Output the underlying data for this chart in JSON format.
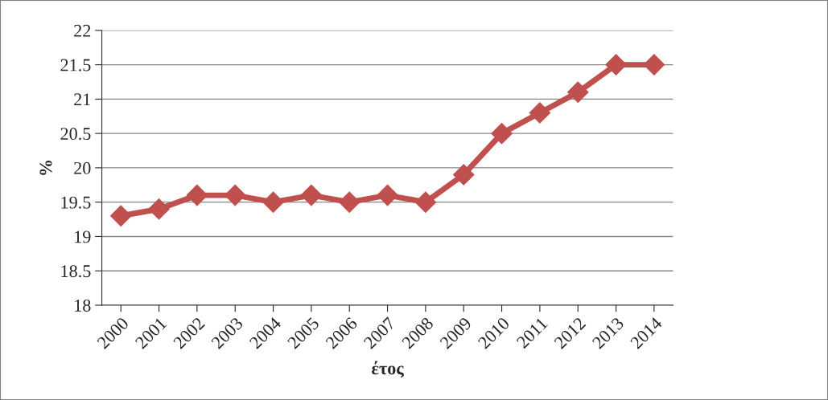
{
  "chart_data": {
    "type": "line",
    "xlabel": "έτος",
    "ylabel": "%",
    "categories": [
      "2000",
      "2001",
      "2002",
      "2003",
      "2004",
      "2005",
      "2006",
      "2007",
      "2008",
      "2009",
      "2010",
      "2011",
      "2012",
      "2013",
      "2014"
    ],
    "series": [
      {
        "color": "#c0504d",
        "values": [
          19.3,
          19.4,
          19.6,
          19.6,
          19.5,
          19.6,
          19.5,
          19.6,
          19.5,
          19.9,
          20.5,
          20.8,
          21.1,
          21.5,
          21.5
        ]
      }
    ],
    "ylim": [
      18,
      22
    ],
    "yticks": [
      18,
      18.5,
      19,
      19.5,
      20,
      20.5,
      21,
      21.5,
      22
    ],
    "grid": "y",
    "marker": "diamond",
    "line_style": "solid",
    "legend": false
  }
}
